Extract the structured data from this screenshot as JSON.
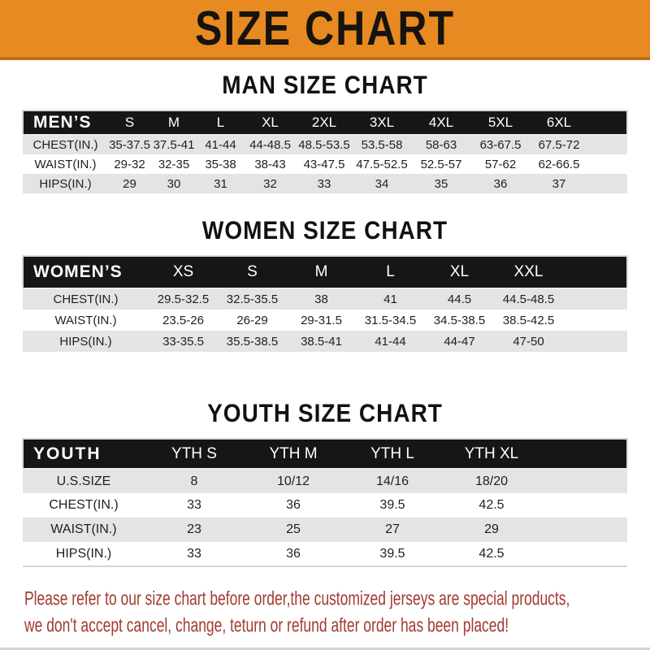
{
  "banner": {
    "title": "SIZE CHART"
  },
  "colors": {
    "banner_orange": "#E78A21",
    "banner_edge": "#C06E15",
    "band_black": "#161616",
    "stripe_gray": "#E4E4E4",
    "title_black": "#111111",
    "cell_text": "#1F1F1F",
    "disclaimer_red": "#A33A32"
  },
  "sections": [
    {
      "title": "MAN SIZE CHART",
      "header_label": "MEN’S",
      "columns": [
        "S",
        "M",
        "L",
        "XL",
        "2XL",
        "3XL",
        "4XL",
        "5XL",
        "6XL"
      ],
      "rows": [
        {
          "label": "CHEST(IN.)",
          "values": [
            "35-37.5",
            "37.5-41",
            "41-44",
            "44-48.5",
            "48.5-53.5",
            "53.5-58",
            "58-63",
            "63-67.5",
            "67.5-72"
          ]
        },
        {
          "label": "WAIST(IN.)",
          "values": [
            "29-32",
            "32-35",
            "35-38",
            "38-43",
            "43-47.5",
            "47.5-52.5",
            "52.5-57",
            "57-62",
            "62-66.5"
          ]
        },
        {
          "label": "HIPS(IN.)",
          "values": [
            "29",
            "30",
            "31",
            "32",
            "33",
            "34",
            "35",
            "36",
            "37"
          ]
        }
      ]
    },
    {
      "title": "WOMEN SIZE CHART",
      "header_label": "WOMEN’S",
      "columns": [
        "XS",
        "S",
        "M",
        "L",
        "XL",
        "XXL"
      ],
      "rows": [
        {
          "label": "CHEST(IN.)",
          "values": [
            "29.5-32.5",
            "32.5-35.5",
            "38",
            "41",
            "44.5",
            "44.5-48.5"
          ]
        },
        {
          "label": "WAIST(IN.)",
          "values": [
            "23.5-26",
            "26-29",
            "29-31.5",
            "31.5-34.5",
            "34.5-38.5",
            "38.5-42.5"
          ]
        },
        {
          "label": "HIPS(IN.)",
          "values": [
            "33-35.5",
            "35.5-38.5",
            "38.5-41",
            "41-44",
            "44-47",
            "47-50"
          ]
        }
      ]
    },
    {
      "title": "YOUTH SIZE CHART",
      "header_label": "YOUTH",
      "columns": [
        "YTH S",
        "YTH M",
        "YTH L",
        "YTH XL"
      ],
      "rows": [
        {
          "label": "U.S.SIZE",
          "values": [
            "8",
            "10/12",
            "14/16",
            "18/20"
          ]
        },
        {
          "label": "CHEST(IN.)",
          "values": [
            "33",
            "36",
            "39.5",
            "42.5"
          ]
        },
        {
          "label": "WAIST(IN.)",
          "values": [
            "23",
            "25",
            "27",
            "29"
          ]
        },
        {
          "label": "HIPS(IN.)",
          "values": [
            "33",
            "36",
            "39.5",
            "42.5"
          ]
        }
      ]
    }
  ],
  "disclaimer": {
    "lines": [
      "Please refer to our size chart before order,the customized jerseys are special products,",
      "we don't accept cancel, change, teturn or refund after order has been placed!"
    ]
  }
}
